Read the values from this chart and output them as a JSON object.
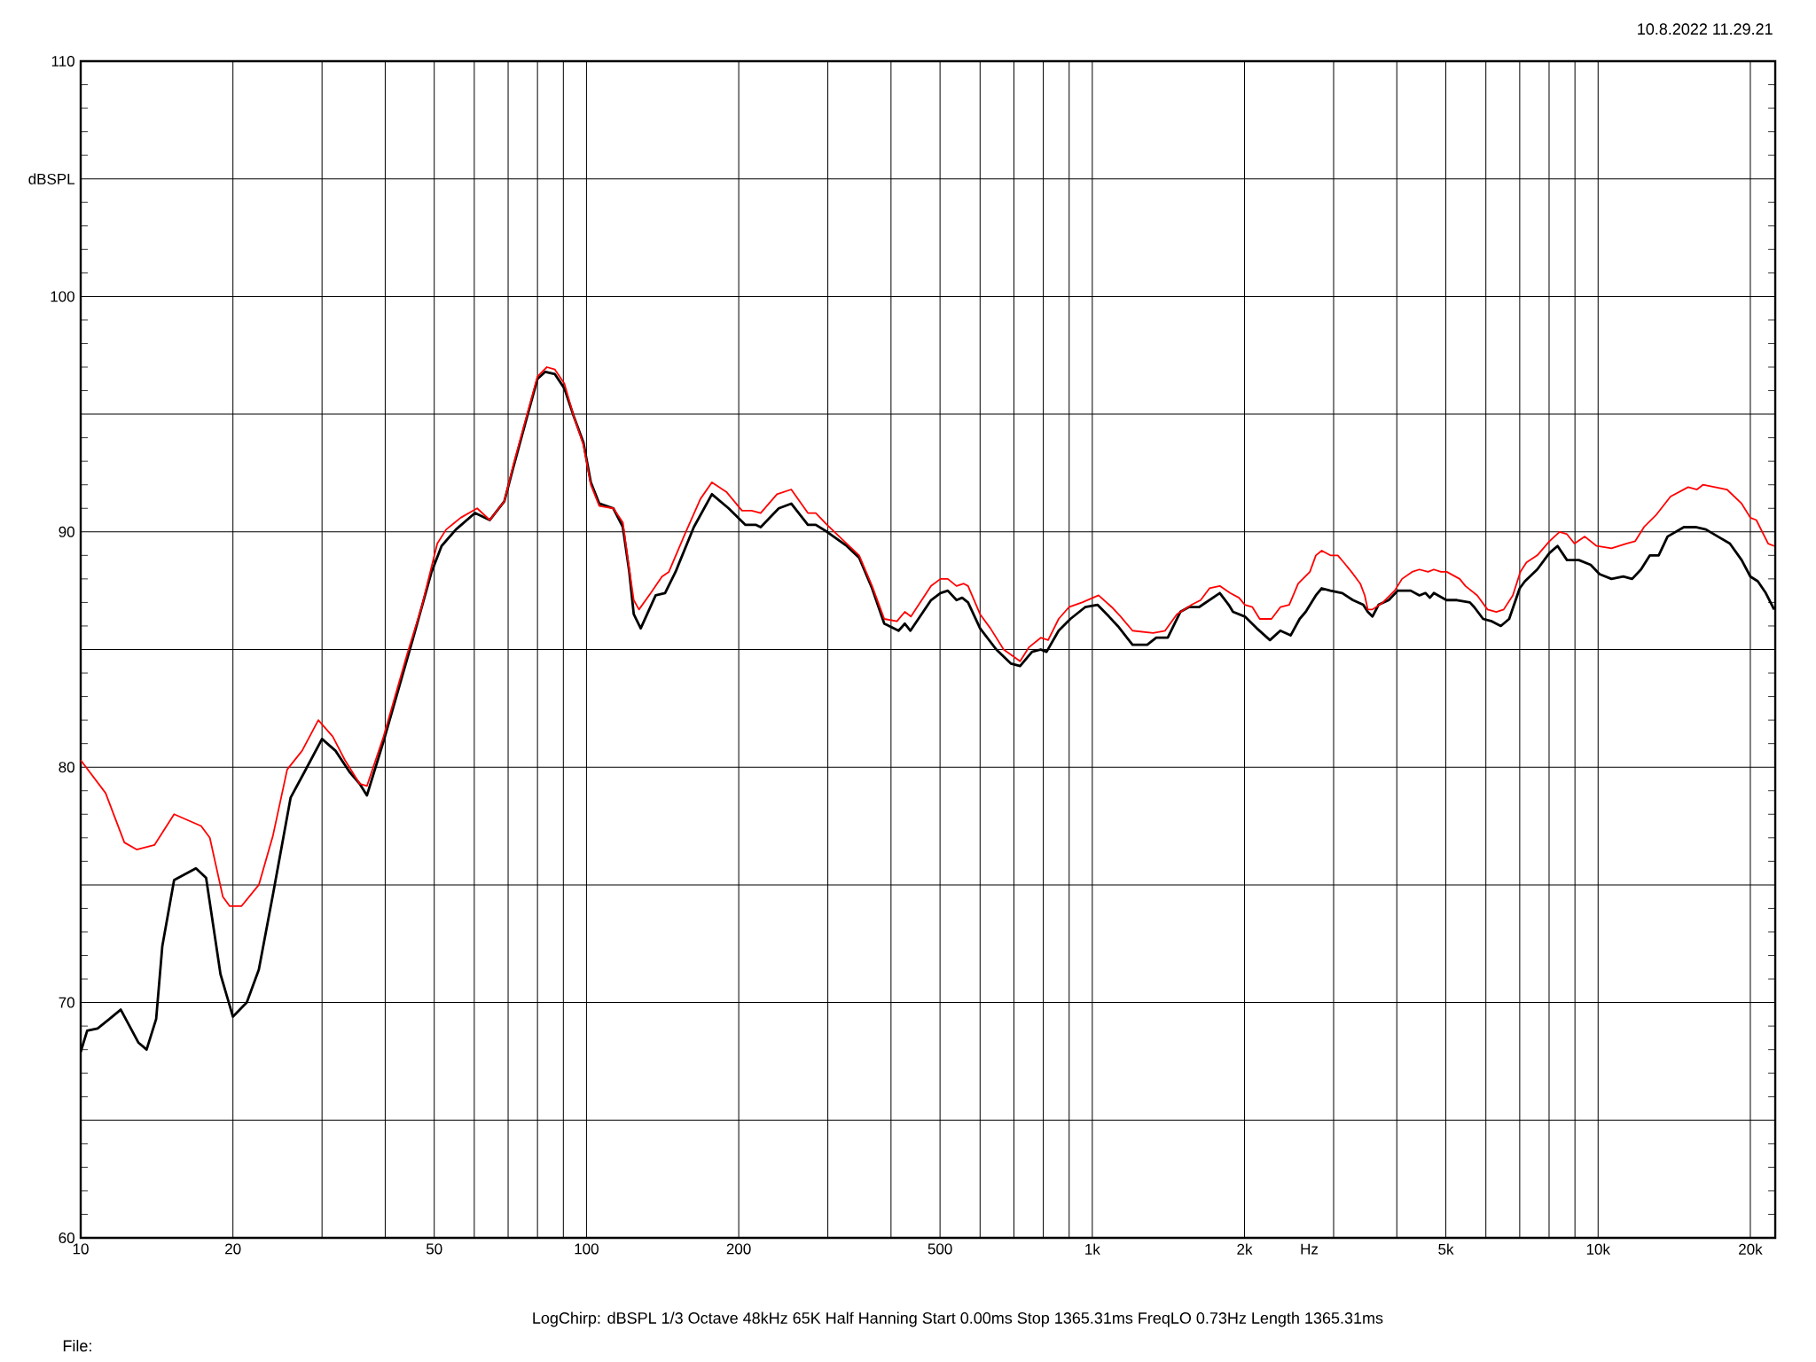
{
  "chart_data": {
    "type": "line",
    "xlabel": "Hz",
    "ylabel": "dBSPL",
    "annotations": [
      "10.8.2022 11.29.21",
      "LogChirp:  dBSPL   1/3 Octave   48kHz   65K   Half Hanning   Start 0.00ms   Stop 1365.31ms   FreqLO 0.73Hz   Length 1365.31ms",
      "File:"
    ],
    "log": "x",
    "grid": true,
    "xlim": [
      10,
      22400
    ],
    "ylim": [
      60,
      110
    ],
    "xticks": [
      10,
      20,
      {
        "value": 30,
        "label": null
      },
      {
        "value": 40,
        "label": null
      },
      50,
      {
        "value": 60,
        "label": null
      },
      {
        "value": 70,
        "label": null
      },
      {
        "value": 80,
        "label": null
      },
      {
        "value": 90,
        "label": null
      },
      100,
      200,
      {
        "value": 300,
        "label": null
      },
      {
        "value": 400,
        "label": null
      },
      500,
      {
        "value": 600,
        "label": null
      },
      {
        "value": 700,
        "label": null
      },
      {
        "value": 800,
        "label": null
      },
      {
        "value": 900,
        "label": null
      },
      {
        "value": 1000,
        "label": "1k"
      },
      {
        "value": 2000,
        "label": "2k"
      },
      {
        "value": 3000,
        "label": null
      },
      {
        "value": 4000,
        "label": null
      },
      {
        "value": 5000,
        "label": "5k"
      },
      {
        "value": 6000,
        "label": null
      },
      {
        "value": 7000,
        "label": null
      },
      {
        "value": 8000,
        "label": null
      },
      {
        "value": 9000,
        "label": null
      },
      {
        "value": 10000,
        "label": "10k"
      },
      {
        "value": 20000,
        "label": "20k"
      }
    ],
    "yticks": [
      60,
      {
        "value": 65,
        "label": null
      },
      70,
      {
        "value": 75,
        "label": null
      },
      80,
      {
        "value": 85,
        "label": null
      },
      90,
      {
        "value": 95,
        "label": null
      },
      100,
      {
        "value": 105,
        "label": null
      },
      110
    ],
    "series": [
      {
        "color": "#000000",
        "x": [
          10,
          10.3,
          10.8,
          11.4,
          12.0,
          13.0,
          13.5,
          14.1,
          14.5,
          15.3,
          16.9,
          17.7,
          18.9,
          20.0,
          21.3,
          22.5,
          24.0,
          26.0,
          27.7,
          30.0,
          31.9,
          34.0,
          35.6,
          36.8,
          39.7,
          45.3,
          49.4,
          51.7,
          55.2,
          60.2,
          64.4,
          68.8,
          71.8,
          76.1,
          80,
          82.9,
          86.6,
          90.4,
          94.4,
          98.6,
          102,
          106,
          113,
          118,
          121.5,
          124,
          128,
          137,
          143,
          150,
          163,
          177,
          191,
          206,
          216,
          221,
          240,
          254,
          274,
          284,
          299,
          327,
          346,
          367,
          388,
          414,
          426,
          437,
          480,
          501,
          518,
          539,
          553,
          568,
          600,
          646,
          691,
          720,
          760,
          791,
          812,
          858,
          905,
          968,
          1024,
          1079,
          1123,
          1201,
          1284,
          1338,
          1410,
          1493,
          1551,
          1625,
          1787,
          1861,
          1898,
          2003,
          2115,
          2245,
          2354,
          2467,
          2570,
          2642,
          2767,
          2842,
          2956,
          3120,
          3276,
          3433,
          3505,
          3580,
          3681,
          3856,
          4017,
          4261,
          4434,
          4557,
          4650,
          4734,
          5013,
          5258,
          5578,
          5692,
          5926,
          6165,
          6422,
          6671,
          6998,
          7168,
          7580,
          8014,
          8315,
          8680,
          9163,
          9669,
          10068,
          10628,
          11214,
          11676,
          12156,
          12659,
          13176,
          13719,
          14775,
          15584,
          16342,
          17257,
          18222,
          19226,
          20004,
          20688,
          21458,
          22288
        ],
        "values": [
          67.9,
          68.8,
          68.9,
          69.3,
          69.7,
          68.3,
          68.0,
          69.3,
          72.4,
          75.2,
          75.7,
          75.3,
          71.2,
          69.4,
          70.0,
          71.4,
          74.6,
          78.7,
          79.8,
          81.2,
          80.7,
          79.8,
          79.3,
          78.8,
          81.1,
          85.4,
          88.3,
          89.4,
          90.1,
          90.8,
          90.5,
          91.3,
          92.8,
          94.8,
          96.5,
          96.8,
          96.7,
          96.1,
          94.9,
          93.8,
          92.1,
          91.2,
          91.0,
          90.2,
          88.3,
          86.5,
          85.9,
          87.3,
          87.4,
          88.3,
          90.2,
          91.6,
          91.0,
          90.3,
          90.3,
          90.2,
          91.0,
          91.2,
          90.3,
          90.3,
          90.0,
          89.4,
          88.9,
          87.6,
          86.1,
          85.8,
          86.1,
          85.8,
          87.1,
          87.4,
          87.5,
          87.1,
          87.2,
          87.0,
          85.9,
          85.0,
          84.4,
          84.3,
          84.9,
          85.0,
          84.9,
          85.8,
          86.3,
          86.8,
          86.9,
          86.4,
          86.0,
          85.2,
          85.2,
          85.5,
          85.5,
          86.6,
          86.8,
          86.8,
          87.4,
          86.9,
          86.6,
          86.4,
          85.9,
          85.4,
          85.8,
          85.6,
          86.3,
          86.6,
          87.3,
          87.6,
          87.5,
          87.4,
          87.1,
          86.9,
          86.6,
          86.4,
          86.9,
          87.1,
          87.5,
          87.5,
          87.3,
          87.4,
          87.2,
          87.4,
          87.1,
          87.1,
          87.0,
          86.8,
          86.3,
          86.2,
          86.0,
          86.3,
          87.6,
          87.9,
          88.4,
          89.1,
          89.4,
          88.8,
          88.8,
          88.6,
          88.2,
          88.0,
          88.1,
          88.0,
          88.4,
          89.0,
          89.0,
          89.8,
          90.2,
          90.2,
          90.1,
          89.8,
          89.5,
          88.8,
          88.1,
          87.9,
          87.4,
          86.7
        ]
      },
      {
        "color": "#ff0000",
        "x": [
          10,
          11.2,
          12.2,
          12.9,
          14.0,
          15.3,
          17.3,
          18.0,
          19.1,
          19.7,
          20.8,
          22.5,
          24.0,
          25.6,
          27.4,
          29.5,
          31.5,
          33.3,
          35.6,
          36.8,
          39.7,
          44.2,
          47.2,
          50.7,
          52.8,
          56.4,
          60.8,
          64.4,
          68.8,
          71.8,
          76.1,
          80,
          83.5,
          86.6,
          90.4,
          94.4,
          98.6,
          102,
          106,
          113,
          118,
          120.6,
          124,
          127,
          134,
          141,
          145.5,
          156.5,
          168,
          177,
          189,
          203,
          212,
          221,
          238,
          254,
          274,
          284,
          299,
          327,
          346,
          367,
          388,
          411,
          426,
          438,
          480,
          501,
          518,
          539,
          557,
          568,
          600,
          629,
          668,
          720,
          750,
          791,
          818,
          858,
          899,
          955,
          1029,
          1093,
          1138,
          1201,
          1319,
          1393,
          1470,
          1572,
          1638,
          1705,
          1787,
          1873,
          1950,
          2003,
          2073,
          2143,
          2261,
          2354,
          2451,
          2553,
          2693,
          2767,
          2842,
          2956,
          3058,
          3142,
          3254,
          3387,
          3457,
          3505,
          3580,
          3754,
          3962,
          4096,
          4289,
          4434,
          4612,
          4734,
          4891,
          5021,
          5326,
          5467,
          5768,
          6045,
          6292,
          6507,
          6783,
          7019,
          7218,
          7580,
          8014,
          8392,
          8680,
          8980,
          9413,
          9933,
          10628,
          11366,
          11834,
          12322,
          13004,
          13906,
          15068,
          15688,
          16119,
          17023,
          17976,
          19226,
          20004,
          20550,
          21692,
          22288
        ],
        "values": [
          80.3,
          78.9,
          76.8,
          76.5,
          76.7,
          78.0,
          77.5,
          77.0,
          74.5,
          74.1,
          74.1,
          75.0,
          77.1,
          79.9,
          80.7,
          82.0,
          81.3,
          80.3,
          79.3,
          79.2,
          81.3,
          84.8,
          86.8,
          89.5,
          90.1,
          90.6,
          91.0,
          90.5,
          91.3,
          92.9,
          94.9,
          96.6,
          97.0,
          96.9,
          96.3,
          94.9,
          93.7,
          92.0,
          91.1,
          91.0,
          90.4,
          88.9,
          87.1,
          86.7,
          87.4,
          88.1,
          88.3,
          89.9,
          91.4,
          92.1,
          91.7,
          90.9,
          90.9,
          90.8,
          91.6,
          91.8,
          90.8,
          90.8,
          90.3,
          89.5,
          89.0,
          87.7,
          86.3,
          86.2,
          86.6,
          86.4,
          87.7,
          88.0,
          88.0,
          87.7,
          87.8,
          87.7,
          86.5,
          85.9,
          85.0,
          84.5,
          85.1,
          85.5,
          85.4,
          86.3,
          86.8,
          87.0,
          87.3,
          86.8,
          86.4,
          85.8,
          85.7,
          85.8,
          86.5,
          86.9,
          87.1,
          87.6,
          87.7,
          87.4,
          87.2,
          86.9,
          86.8,
          86.3,
          86.3,
          86.8,
          86.9,
          87.8,
          88.3,
          89.0,
          89.2,
          89.0,
          89.0,
          88.7,
          88.3,
          87.8,
          87.3,
          86.7,
          86.7,
          87.0,
          87.5,
          88.0,
          88.3,
          88.4,
          88.3,
          88.4,
          88.3,
          88.3,
          88.0,
          87.7,
          87.3,
          86.7,
          86.6,
          86.7,
          87.3,
          88.3,
          88.7,
          89.0,
          89.6,
          90.0,
          89.9,
          89.5,
          89.8,
          89.4,
          89.3,
          89.5,
          89.6,
          90.2,
          90.7,
          91.5,
          91.9,
          91.8,
          92.0,
          91.9,
          91.8,
          91.2,
          90.6,
          90.5,
          89.5,
          89.4
        ]
      }
    ]
  }
}
